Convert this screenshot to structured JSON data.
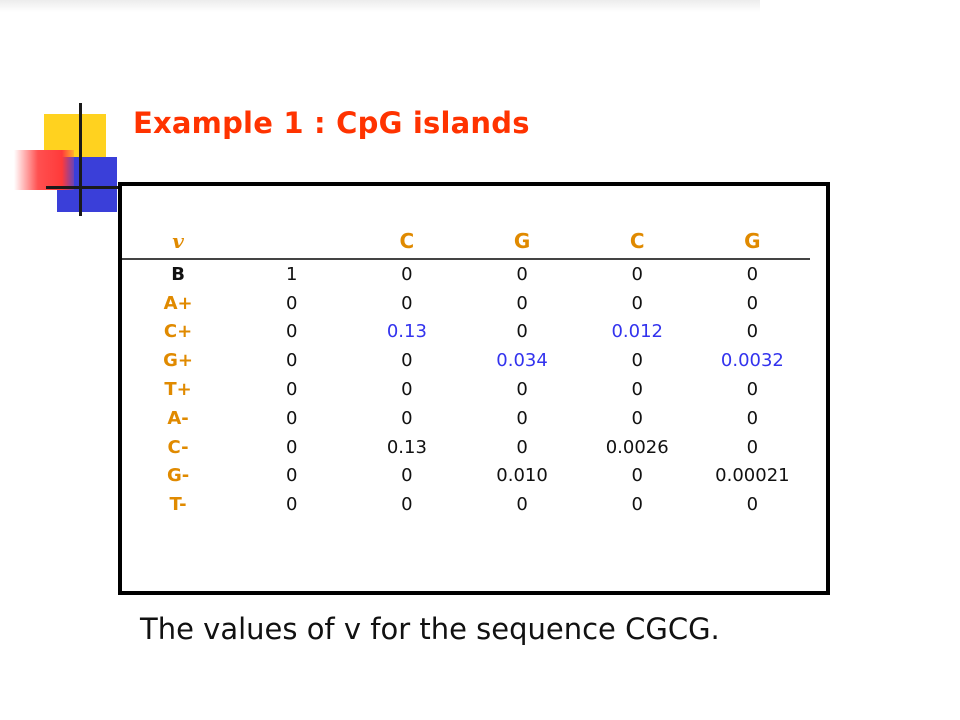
{
  "title": "Example 1 : CpG islands",
  "caption": "The values of v for the sequence CGCG.",
  "table": {
    "header": [
      "v",
      "",
      "C",
      "G",
      "C",
      "G"
    ],
    "rows": [
      [
        "B",
        "1",
        "0",
        "0",
        "0",
        "0"
      ],
      [
        "A+",
        "0",
        "0",
        "0",
        "0",
        "0"
      ],
      [
        "C+",
        "0",
        "0.13",
        "0",
        "0.012",
        "0"
      ],
      [
        "G+",
        "0",
        "0",
        "0.034",
        "0",
        "0.0032"
      ],
      [
        "T+",
        "0",
        "0",
        "0",
        "0",
        "0"
      ],
      [
        "A-",
        "0",
        "0",
        "0",
        "0",
        "0"
      ],
      [
        "C-",
        "0",
        "0.13",
        "0",
        "0.0026",
        "0"
      ],
      [
        "G-",
        "0",
        "0",
        "0.010",
        "0",
        "0.00021"
      ],
      [
        "T-",
        "0",
        "0",
        "0",
        "0",
        "0"
      ]
    ],
    "highlighted_cells": [
      [
        2,
        2
      ],
      [
        2,
        4
      ],
      [
        3,
        3
      ],
      [
        3,
        5
      ]
    ]
  },
  "colors": {
    "title": "#ff3300",
    "header": "#e08a00",
    "highlight": "#3333ee"
  }
}
